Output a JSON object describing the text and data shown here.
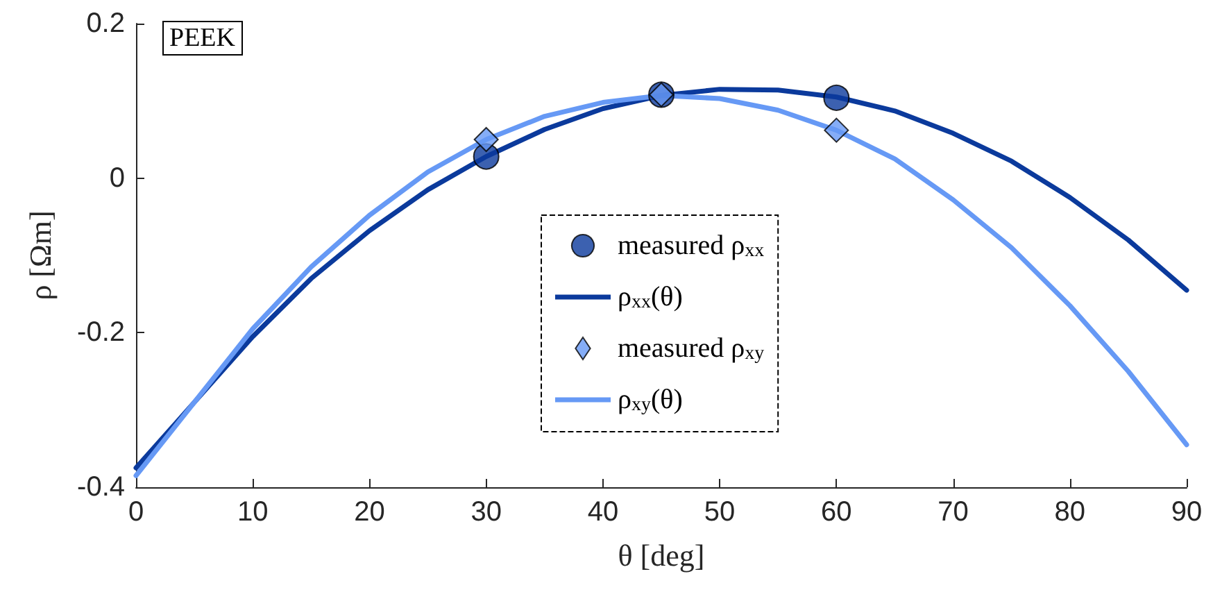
{
  "chart_data": {
    "type": "line",
    "annotations": [
      "PEEK"
    ],
    "xlabel": "θ [deg]",
    "ylabel": "ρ [Ωm]",
    "xlim": [
      0,
      90
    ],
    "xticks": [
      0,
      10,
      20,
      30,
      40,
      50,
      60,
      70,
      80,
      90
    ],
    "ylim": [
      -0.4,
      0.2
    ],
    "yticks": [
      -0.4,
      -0.2,
      0,
      0.2
    ],
    "grid": false,
    "legend": "center",
    "series": [
      {
        "name": "measured ρ$_{xx}$",
        "type": "scatter",
        "marker": "circle",
        "color": "#0b3a9c",
        "x": [
          30,
          45,
          60
        ],
        "values": [
          0.028,
          0.108,
          0.104
        ]
      },
      {
        "name": "ρ$_{xx}$(θ)",
        "marker": "none",
        "color": "#0b3a9c",
        "x": [
          0,
          5,
          10,
          15,
          20,
          25,
          30,
          35,
          40,
          45,
          50,
          55,
          60,
          65,
          70,
          75,
          80,
          85,
          90
        ],
        "values": [
          -0.375,
          -0.29,
          -0.205,
          -0.13,
          -0.068,
          -0.015,
          0.028,
          0.063,
          0.09,
          0.107,
          0.115,
          0.114,
          0.105,
          0.087,
          0.058,
          0.022,
          -0.025,
          -0.08,
          -0.145
        ]
      },
      {
        "name": "measured ρ$_{xy}$",
        "type": "scatter",
        "marker": "diamond",
        "color": "#6699f5",
        "x": [
          30,
          45,
          60
        ],
        "values": [
          0.05,
          0.108,
          0.062
        ]
      },
      {
        "name": "ρ$_{xy}$(θ)",
        "marker": "none",
        "color": "#6699f5",
        "x": [
          0,
          5,
          10,
          15,
          20,
          25,
          30,
          35,
          40,
          45,
          50,
          55,
          60,
          65,
          70,
          75,
          80,
          85,
          90
        ],
        "values": [
          -0.385,
          -0.29,
          -0.195,
          -0.115,
          -0.048,
          0.008,
          0.05,
          0.08,
          0.098,
          0.107,
          0.103,
          0.088,
          0.062,
          0.025,
          -0.028,
          -0.09,
          -0.165,
          -0.25,
          -0.345
        ]
      }
    ]
  }
}
